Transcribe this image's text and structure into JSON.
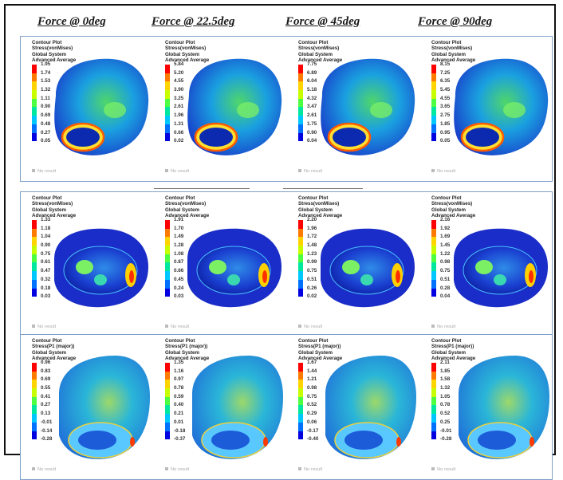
{
  "headers": [
    "Force @ 0deg",
    "Force @ 22.5deg",
    "Force @ 45deg",
    "Force @ 90deg"
  ],
  "colors": {
    "scale": [
      "#ff0000",
      "#ff7a00",
      "#ffd400",
      "#c8ff00",
      "#4cff40",
      "#00e8a0",
      "#00c8ff",
      "#0070ff",
      "#0000e0"
    ],
    "no_result": "#bbbbbb",
    "row_border": "#7f9fc7"
  },
  "rows": [
    {
      "name": "row-top",
      "panels": [
        {
          "label": [
            "Contour Plot",
            "Stress(vonMises)",
            "Global System",
            "Advanced Average"
          ],
          "values": [
            "1.95",
            "1.74",
            "1.53",
            "1.32",
            "1.11",
            "0.90",
            "0.69",
            "0.48",
            "0.27",
            "0.05"
          ],
          "no_result": "No result"
        },
        {
          "label": [
            "Contour Plot",
            "Stress(vonMises)",
            "Global System",
            "Advanced Average"
          ],
          "values": [
            "5.84",
            "5.20",
            "4.55",
            "3.90",
            "3.25",
            "2.61",
            "1.96",
            "1.31",
            "0.66",
            "0.02"
          ],
          "no_result": "No result"
        },
        {
          "label": [
            "Contour Plot",
            "Stress(vonMises)",
            "Global System",
            "Advanced Average"
          ],
          "values": [
            "7.75",
            "6.89",
            "6.04",
            "5.18",
            "4.32",
            "3.47",
            "2.61",
            "1.75",
            "0.90",
            "0.04"
          ],
          "no_result": "No result"
        },
        {
          "label": [
            "Contour Plot",
            "Stress(vonMises)",
            "Global System",
            "Advanced Average"
          ],
          "values": [
            "8.15",
            "7.25",
            "6.35",
            "5.45",
            "4.55",
            "3.65",
            "2.75",
            "1.85",
            "0.95",
            "0.05"
          ],
          "no_result": "No result"
        }
      ]
    },
    {
      "name": "row-middle",
      "panels": [
        {
          "label": [
            "Contour Plot",
            "Stress(vonMises)",
            "Global System",
            "Advanced Average"
          ],
          "values": [
            "1.33",
            "1.18",
            "1.04",
            "0.90",
            "0.75",
            "0.61",
            "0.47",
            "0.32",
            "0.18",
            "0.03"
          ],
          "no_result": "No result"
        },
        {
          "label": [
            "Contour Plot",
            "Stress(vonMises)",
            "Global System",
            "Advanced Average"
          ],
          "values": [
            "1.91",
            "1.70",
            "1.49",
            "1.28",
            "1.08",
            "0.87",
            "0.66",
            "0.45",
            "0.24",
            "0.03"
          ],
          "no_result": "No result"
        },
        {
          "label": [
            "Contour Plot",
            "Stress(vonMises)",
            "Global System",
            "Advanced Average"
          ],
          "values": [
            "2.20",
            "1.96",
            "1.72",
            "1.48",
            "1.23",
            "0.99",
            "0.75",
            "0.51",
            "0.26",
            "0.02"
          ],
          "no_result": "No result"
        },
        {
          "label": [
            "Contour Plot",
            "Stress(vonMises)",
            "Global System",
            "Advanced Average"
          ],
          "values": [
            "2.16",
            "1.92",
            "1.69",
            "1.45",
            "1.22",
            "0.98",
            "0.75",
            "0.51",
            "0.28",
            "0.04"
          ],
          "no_result": "No result"
        }
      ]
    },
    {
      "name": "row-bottom",
      "panels": [
        {
          "label": [
            "Contour Plot",
            "Stress(P1 (major))",
            "Global System",
            "Advanced Average"
          ],
          "values": [
            "0.96",
            "0.83",
            "0.69",
            "0.55",
            "0.41",
            "0.27",
            "0.13",
            "-0.01",
            "-0.14",
            "-0.28"
          ],
          "no_result": "No result"
        },
        {
          "label": [
            "Contour Plot",
            "Stress(P1 (major))",
            "Global System",
            "Advanced Average"
          ],
          "values": [
            "1.35",
            "1.16",
            "0.97",
            "0.78",
            "0.59",
            "0.40",
            "0.21",
            "0.01",
            "-0.18",
            "-0.37"
          ],
          "no_result": "No result"
        },
        {
          "label": [
            "Contour Plot",
            "Stress(P1 (major))",
            "Global System",
            "Advanced Average"
          ],
          "values": [
            "1.67",
            "1.44",
            "1.21",
            "0.98",
            "0.75",
            "0.52",
            "0.29",
            "0.06",
            "-0.17",
            "-0.40"
          ],
          "no_result": "No result"
        },
        {
          "label": [
            "Contour Plot",
            "Stress(P1 (major))",
            "Global System",
            "Advanced Average"
          ],
          "values": [
            "2.11",
            "1.85",
            "1.58",
            "1.32",
            "1.05",
            "0.78",
            "0.52",
            "0.25",
            "-0.01",
            "-0.28"
          ],
          "no_result": "No result"
        }
      ]
    }
  ]
}
